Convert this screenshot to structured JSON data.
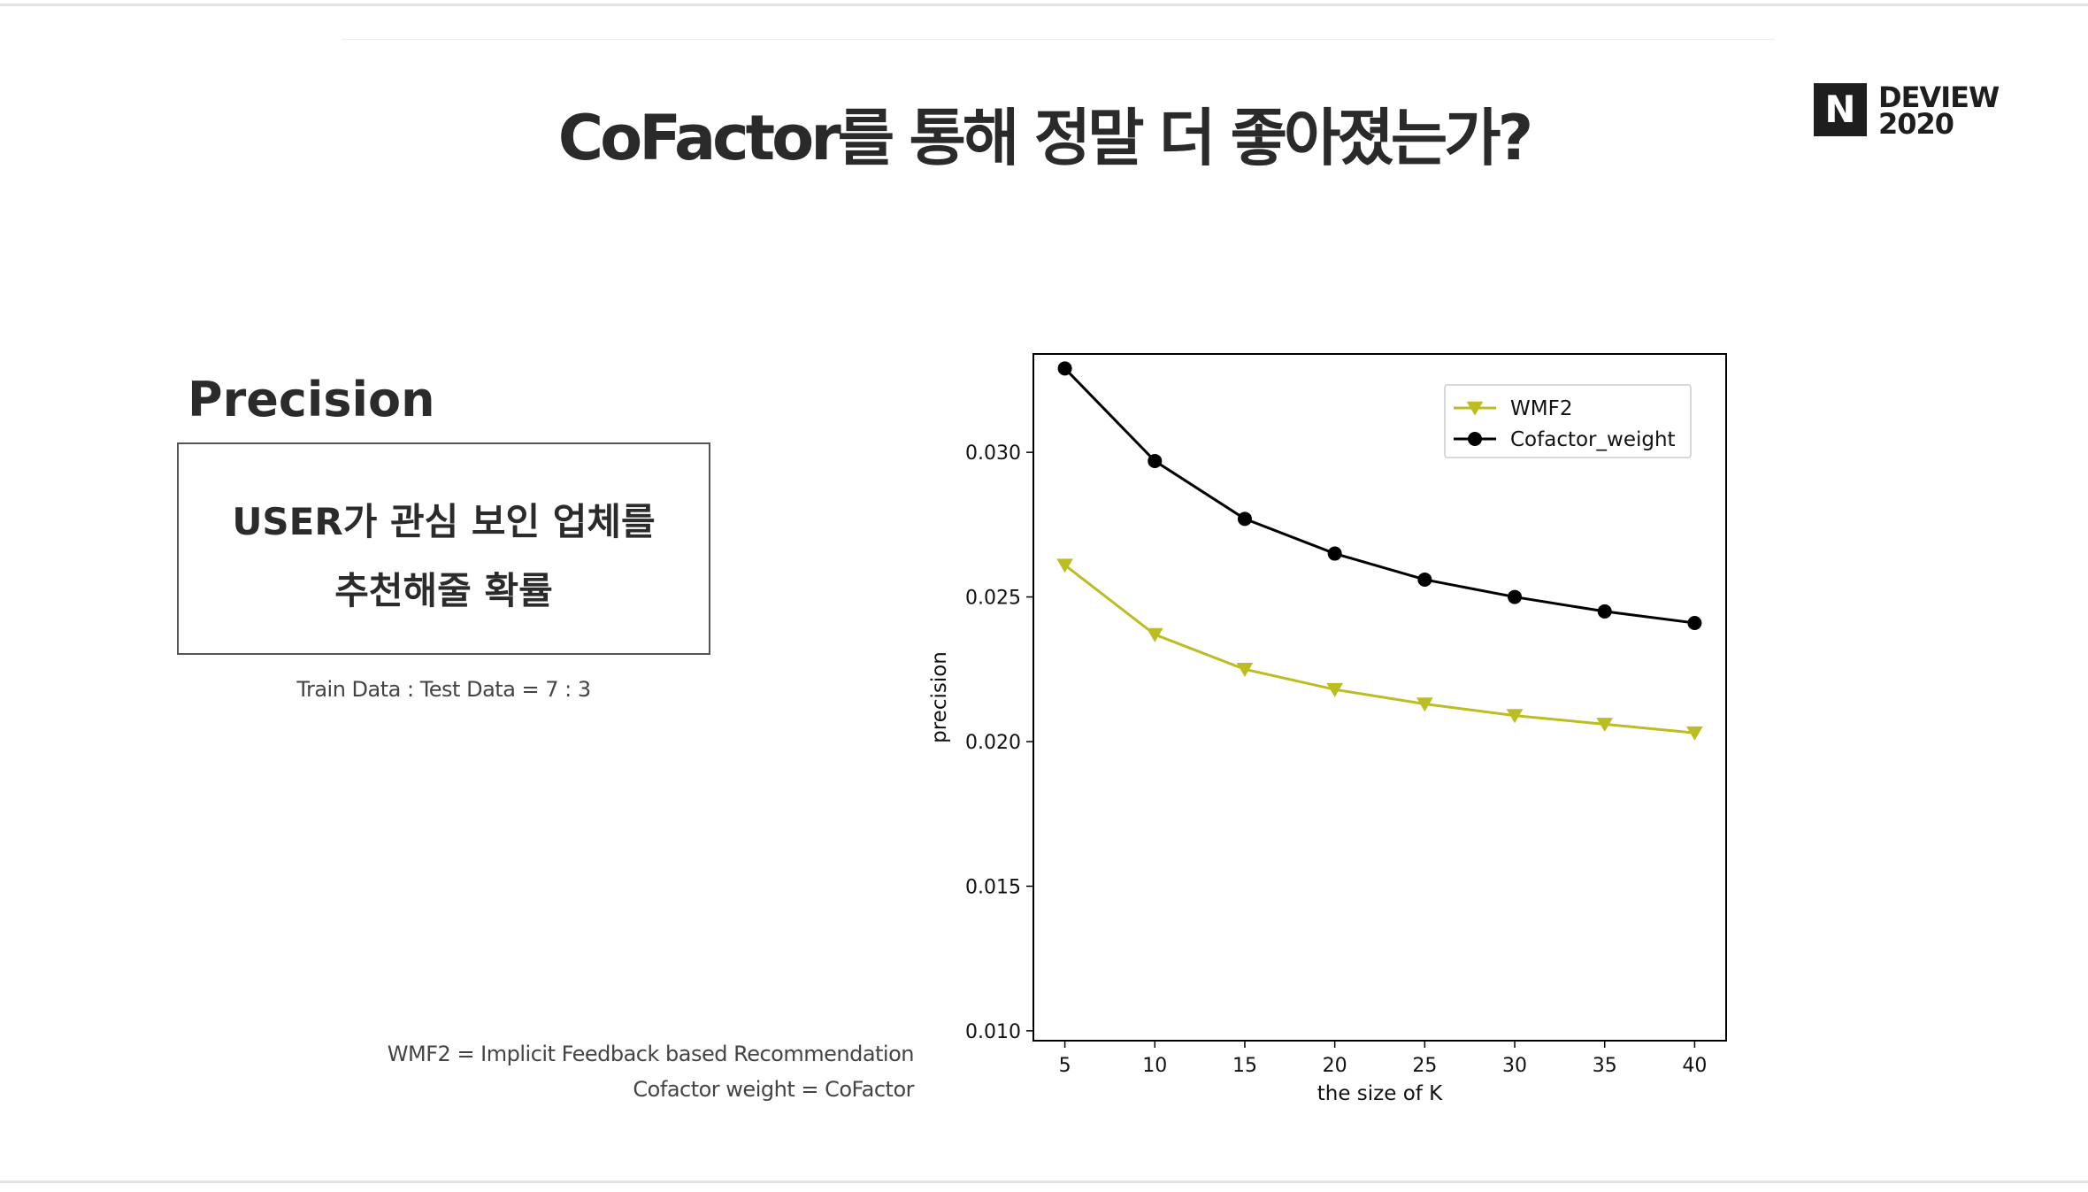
{
  "slide": {
    "title": "CoFactor를 통해 정말 더 좋아졌는가?",
    "logo": {
      "mark": "N",
      "line1": "DEVIEW",
      "line2": "2020"
    },
    "section_heading": "Precision",
    "definition": {
      "line1": "USER가 관심 보인 업체를",
      "line2": "추천해줄 확률"
    },
    "split_note": "Train Data : Test Data = 7 : 3",
    "footnotes": [
      "WMF2 = Implicit Feedback based Recommendation",
      "Cofactor weight = CoFactor"
    ]
  },
  "chart_data": {
    "type": "line",
    "x": [
      5,
      10,
      15,
      20,
      25,
      30,
      35,
      40
    ],
    "series": [
      {
        "name": "WMF2",
        "color": "#bcbd22",
        "marker": "triangle-down",
        "values": [
          0.0261,
          0.0237,
          0.0225,
          0.0218,
          0.0213,
          0.0209,
          0.0206,
          0.0203
        ]
      },
      {
        "name": "Cofactor_weight",
        "color": "#000000",
        "marker": "circle",
        "values": [
          0.0329,
          0.0297,
          0.0277,
          0.0265,
          0.0256,
          0.025,
          0.0245,
          0.0241
        ]
      }
    ],
    "xlabel": "the size of K",
    "ylabel": "precision",
    "xticks": [
      5,
      10,
      15,
      20,
      25,
      30,
      35,
      40
    ],
    "yticks": [
      0.01,
      0.015,
      0.02,
      0.025,
      0.03
    ],
    "ytick_labels": [
      "0.010",
      "0.015",
      "0.020",
      "0.025",
      "0.030"
    ],
    "xlim": [
      3.25,
      41.75
    ],
    "ylim": [
      0.00966,
      0.0334
    ],
    "grid": false,
    "legend": "top-right"
  }
}
